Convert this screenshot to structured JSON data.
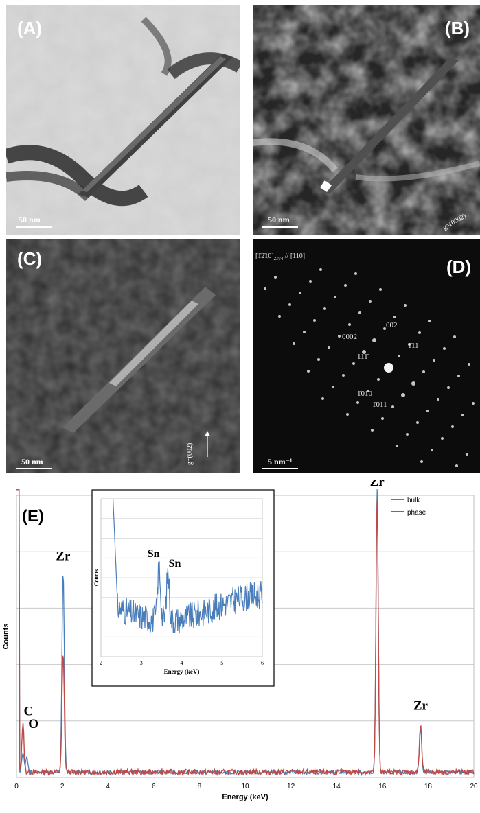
{
  "panels": {
    "A": {
      "label": "(A)",
      "scale": "50 nm"
    },
    "B": {
      "label": "(B)",
      "scale": "50 nm",
      "g_vector": "g=(0002)"
    },
    "C": {
      "label": "(C)",
      "scale": "50 nm",
      "g_vector": "g=(002)"
    },
    "D": {
      "label": "(D)",
      "scale": "5 nm⁻¹",
      "zone_axis": "[1̄2̄10]",
      "zone_sub": "Zry4",
      "zone_axis2": "// [110]",
      "spots": [
        "002",
        "1̄11",
        "0002",
        "111̄",
        "1̄010",
        "1̄011"
      ]
    },
    "E": {
      "label": "(E)"
    }
  },
  "chart_data": [
    {
      "type": "line",
      "title": "",
      "xlabel": "Energy (keV)",
      "ylabel": "Counts",
      "xlim": [
        0,
        20
      ],
      "xticks": [
        0,
        2,
        4,
        6,
        8,
        10,
        12,
        14,
        16,
        18,
        20
      ],
      "grid": true,
      "legend_position": "top-right",
      "series": [
        {
          "name": "bulk",
          "color": "#4a7ebb",
          "peaks": [
            {
              "x": 0.28,
              "y": 0.07
            },
            {
              "x": 0.45,
              "y": 0.055
            },
            {
              "x": 2.04,
              "y": 0.72
            },
            {
              "x": 15.77,
              "y": 1.0
            },
            {
              "x": 17.67,
              "y": 0.16
            }
          ]
        },
        {
          "name": "phase",
          "color": "#be4b48",
          "peaks": [
            {
              "x": 0.28,
              "y": 0.17
            },
            {
              "x": 2.04,
              "y": 0.42
            },
            {
              "x": 15.77,
              "y": 0.97
            },
            {
              "x": 17.67,
              "y": 0.17
            }
          ]
        }
      ],
      "annotations": [
        {
          "text": "C",
          "x": 0.28
        },
        {
          "text": "O",
          "x": 0.5
        },
        {
          "text": "Zr",
          "x": 2.04
        },
        {
          "text": "Zr",
          "x": 15.77
        },
        {
          "text": "Zr",
          "x": 17.67
        }
      ]
    },
    {
      "type": "line",
      "title": "inset",
      "xlabel": "Energy (keV)",
      "ylabel": "Counts",
      "xlim": [
        2,
        6
      ],
      "xticks": [
        2,
        3,
        4,
        5,
        6
      ],
      "series": [
        {
          "name": "",
          "color": "#4a7ebb",
          "peaks": [
            {
              "x": 3.44,
              "y": 0.62
            },
            {
              "x": 3.66,
              "y": 0.55
            }
          ]
        }
      ],
      "annotations": [
        {
          "text": "Sn",
          "x": 3.44
        },
        {
          "text": "Sn",
          "x": 3.66
        }
      ]
    }
  ]
}
